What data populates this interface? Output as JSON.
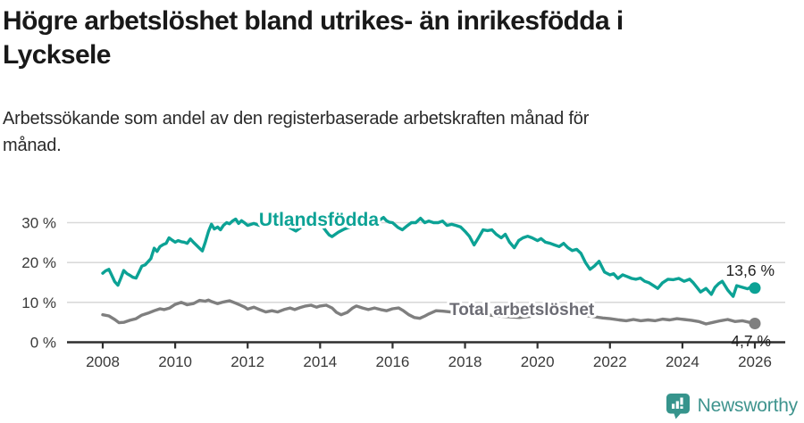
{
  "title_lines": [
    "Högre arbetslöshet bland utrikes- än inrikesfödda i",
    "Lycksele"
  ],
  "subtitle_lines": [
    "Arbetssökande som andel av den registerbaserade arbetskraften månad för",
    "månad."
  ],
  "branding": {
    "logo_text": "Newsworthy",
    "logo_color": "#36948c",
    "text_color": "#3f948e"
  },
  "chart_data": {
    "type": "line",
    "title": "Högre arbetslöshet bland utrikes- än inrikesfödda i Lycksele",
    "subtitle": "Arbetssökande som andel av den registerbaserade arbetskraften månad för månad.",
    "xlabel": "",
    "ylabel": "",
    "unit": "%",
    "grid": "horizontal",
    "legend": "inline-labels",
    "xlim": [
      2007.0,
      2026.9
    ],
    "ylim": [
      0,
      33
    ],
    "x_ticks": [
      "2008",
      "2010",
      "2012",
      "2014",
      "2016",
      "2018",
      "2020",
      "2022",
      "2024",
      "2026"
    ],
    "y_ticks": [
      {
        "v": 0,
        "label": "0 %"
      },
      {
        "v": 10,
        "label": "10 %"
      },
      {
        "v": 20,
        "label": "20 %"
      },
      {
        "v": 30,
        "label": "30 %"
      }
    ],
    "colors": {
      "grid": "#d9d9d9",
      "axis": "#2e2e2e",
      "tick_text": "#3a3a3a",
      "value_label": "#1f1f1f"
    },
    "series": [
      {
        "name": "Utlandsfödda",
        "color": "#0ca295",
        "label_color": "#0ca295",
        "end_label": "13,6 %",
        "points": [
          [
            2008.0,
            17.3
          ],
          [
            2008.08,
            17.9
          ],
          [
            2008.17,
            18.3
          ],
          [
            2008.25,
            16.8
          ],
          [
            2008.33,
            15.2
          ],
          [
            2008.42,
            14.3
          ],
          [
            2008.5,
            16.1
          ],
          [
            2008.58,
            18.0
          ],
          [
            2008.67,
            17.2
          ],
          [
            2008.75,
            16.8
          ],
          [
            2008.83,
            16.3
          ],
          [
            2008.92,
            16.1
          ],
          [
            2009.0,
            17.6
          ],
          [
            2009.08,
            19.1
          ],
          [
            2009.17,
            19.4
          ],
          [
            2009.25,
            20.2
          ],
          [
            2009.33,
            21.0
          ],
          [
            2009.42,
            23.6
          ],
          [
            2009.5,
            22.8
          ],
          [
            2009.58,
            24.0
          ],
          [
            2009.67,
            24.5
          ],
          [
            2009.75,
            24.8
          ],
          [
            2009.83,
            26.2
          ],
          [
            2009.92,
            25.6
          ],
          [
            2010.0,
            25.1
          ],
          [
            2010.08,
            25.5
          ],
          [
            2010.17,
            25.2
          ],
          [
            2010.25,
            25.1
          ],
          [
            2010.33,
            24.8
          ],
          [
            2010.42,
            25.9
          ],
          [
            2010.5,
            25.1
          ],
          [
            2010.58,
            24.4
          ],
          [
            2010.67,
            23.6
          ],
          [
            2010.75,
            22.9
          ],
          [
            2010.83,
            25.1
          ],
          [
            2010.92,
            27.8
          ],
          [
            2011.0,
            29.6
          ],
          [
            2011.08,
            28.4
          ],
          [
            2011.17,
            28.9
          ],
          [
            2011.25,
            28.2
          ],
          [
            2011.33,
            29.3
          ],
          [
            2011.42,
            30.0
          ],
          [
            2011.5,
            29.7
          ],
          [
            2011.58,
            30.4
          ],
          [
            2011.67,
            30.9
          ],
          [
            2011.75,
            29.8
          ],
          [
            2011.83,
            30.5
          ],
          [
            2011.92,
            29.9
          ],
          [
            2012.0,
            29.3
          ],
          [
            2012.17,
            29.8
          ],
          [
            2012.33,
            29.3
          ],
          [
            2012.5,
            29.9
          ],
          [
            2012.67,
            29.5
          ],
          [
            2012.83,
            30.1
          ],
          [
            2013.0,
            29.5
          ],
          [
            2013.17,
            28.7
          ],
          [
            2013.33,
            27.9
          ],
          [
            2013.5,
            29.0
          ],
          [
            2013.67,
            29.7
          ],
          [
            2013.83,
            29.3
          ],
          [
            2014.0,
            29.8
          ],
          [
            2014.08,
            28.9
          ],
          [
            2014.17,
            27.8
          ],
          [
            2014.25,
            26.9
          ],
          [
            2014.33,
            26.5
          ],
          [
            2014.5,
            27.6
          ],
          [
            2014.67,
            28.4
          ],
          [
            2014.83,
            28.9
          ],
          [
            2015.0,
            29.3
          ],
          [
            2015.17,
            29.0
          ],
          [
            2015.33,
            29.7
          ],
          [
            2015.5,
            30.2
          ],
          [
            2015.67,
            30.8
          ],
          [
            2015.75,
            31.3
          ],
          [
            2015.83,
            30.5
          ],
          [
            2015.92,
            30.1
          ],
          [
            2016.0,
            30.0
          ],
          [
            2016.15,
            28.8
          ],
          [
            2016.27,
            28.2
          ],
          [
            2016.4,
            29.2
          ],
          [
            2016.52,
            30.0
          ],
          [
            2016.64,
            30.0
          ],
          [
            2016.77,
            31.1
          ],
          [
            2016.89,
            30.0
          ],
          [
            2017.0,
            30.4
          ],
          [
            2017.13,
            30.0
          ],
          [
            2017.26,
            30.0
          ],
          [
            2017.38,
            30.4
          ],
          [
            2017.5,
            29.3
          ],
          [
            2017.63,
            29.6
          ],
          [
            2017.75,
            29.3
          ],
          [
            2017.88,
            28.9
          ],
          [
            2018.0,
            27.8
          ],
          [
            2018.12,
            26.6
          ],
          [
            2018.25,
            24.4
          ],
          [
            2018.37,
            26.2
          ],
          [
            2018.5,
            28.2
          ],
          [
            2018.62,
            28.0
          ],
          [
            2018.74,
            28.2
          ],
          [
            2018.86,
            27.1
          ],
          [
            2019.0,
            26.2
          ],
          [
            2019.11,
            27.1
          ],
          [
            2019.23,
            25.1
          ],
          [
            2019.36,
            23.7
          ],
          [
            2019.48,
            25.5
          ],
          [
            2019.6,
            26.2
          ],
          [
            2019.73,
            26.6
          ],
          [
            2019.85,
            26.2
          ],
          [
            2020.0,
            25.5
          ],
          [
            2020.1,
            26.0
          ],
          [
            2020.22,
            25.1
          ],
          [
            2020.35,
            24.8
          ],
          [
            2020.47,
            24.4
          ],
          [
            2020.6,
            24.0
          ],
          [
            2020.72,
            24.8
          ],
          [
            2020.84,
            23.7
          ],
          [
            2020.96,
            23.0
          ],
          [
            2021.08,
            23.3
          ],
          [
            2021.2,
            22.3
          ],
          [
            2021.33,
            19.9
          ],
          [
            2021.45,
            18.3
          ],
          [
            2021.57,
            19.1
          ],
          [
            2021.7,
            20.3
          ],
          [
            2021.85,
            17.6
          ],
          [
            2022.0,
            16.9
          ],
          [
            2022.1,
            17.2
          ],
          [
            2022.22,
            16.0
          ],
          [
            2022.35,
            16.9
          ],
          [
            2022.47,
            16.5
          ],
          [
            2022.6,
            16.0
          ],
          [
            2022.72,
            15.8
          ],
          [
            2022.84,
            16.1
          ],
          [
            2022.96,
            15.3
          ],
          [
            2023.08,
            14.9
          ],
          [
            2023.2,
            14.2
          ],
          [
            2023.32,
            13.5
          ],
          [
            2023.45,
            14.9
          ],
          [
            2023.6,
            15.8
          ],
          [
            2023.75,
            15.7
          ],
          [
            2023.9,
            16.0
          ],
          [
            2024.05,
            15.3
          ],
          [
            2024.2,
            15.8
          ],
          [
            2024.3,
            14.9
          ],
          [
            2024.4,
            13.8
          ],
          [
            2024.5,
            12.6
          ],
          [
            2024.65,
            13.5
          ],
          [
            2024.8,
            12.0
          ],
          [
            2024.9,
            13.8
          ],
          [
            2025.0,
            14.7
          ],
          [
            2025.1,
            15.3
          ],
          [
            2025.25,
            13.1
          ],
          [
            2025.4,
            11.5
          ],
          [
            2025.5,
            14.2
          ],
          [
            2025.65,
            13.8
          ],
          [
            2025.8,
            13.4
          ],
          [
            2025.9,
            13.9
          ],
          [
            2026.0,
            13.6
          ]
        ]
      },
      {
        "name": "Total arbetslöshet",
        "color": "#7f7f7f",
        "label_color": "#6c6c74",
        "end_label": "4,7 %",
        "points": [
          [
            2008.0,
            6.9
          ],
          [
            2008.17,
            6.6
          ],
          [
            2008.33,
            5.7
          ],
          [
            2008.45,
            4.9
          ],
          [
            2008.58,
            5.0
          ],
          [
            2008.75,
            5.5
          ],
          [
            2008.92,
            5.9
          ],
          [
            2009.08,
            6.8
          ],
          [
            2009.25,
            7.3
          ],
          [
            2009.42,
            7.9
          ],
          [
            2009.58,
            8.4
          ],
          [
            2009.7,
            8.2
          ],
          [
            2009.85,
            8.6
          ],
          [
            2010.0,
            9.5
          ],
          [
            2010.17,
            10.0
          ],
          [
            2010.33,
            9.4
          ],
          [
            2010.5,
            9.7
          ],
          [
            2010.67,
            10.5
          ],
          [
            2010.83,
            10.3
          ],
          [
            2010.92,
            10.6
          ],
          [
            2011.0,
            10.2
          ],
          [
            2011.17,
            9.7
          ],
          [
            2011.33,
            10.1
          ],
          [
            2011.5,
            10.4
          ],
          [
            2011.67,
            9.8
          ],
          [
            2011.8,
            9.3
          ],
          [
            2011.92,
            8.8
          ],
          [
            2012.0,
            8.3
          ],
          [
            2012.17,
            8.8
          ],
          [
            2012.33,
            8.2
          ],
          [
            2012.5,
            7.6
          ],
          [
            2012.67,
            7.9
          ],
          [
            2012.83,
            7.6
          ],
          [
            2013.0,
            8.2
          ],
          [
            2013.17,
            8.6
          ],
          [
            2013.3,
            8.2
          ],
          [
            2013.45,
            8.7
          ],
          [
            2013.6,
            9.1
          ],
          [
            2013.75,
            9.3
          ],
          [
            2013.9,
            8.8
          ],
          [
            2014.0,
            9.1
          ],
          [
            2014.17,
            9.3
          ],
          [
            2014.33,
            8.6
          ],
          [
            2014.45,
            7.5
          ],
          [
            2014.58,
            6.9
          ],
          [
            2014.75,
            7.5
          ],
          [
            2014.9,
            8.6
          ],
          [
            2015.0,
            9.1
          ],
          [
            2015.17,
            8.6
          ],
          [
            2015.33,
            8.2
          ],
          [
            2015.5,
            8.6
          ],
          [
            2015.67,
            8.2
          ],
          [
            2015.83,
            7.9
          ],
          [
            2016.0,
            8.4
          ],
          [
            2016.17,
            8.6
          ],
          [
            2016.3,
            7.9
          ],
          [
            2016.45,
            6.9
          ],
          [
            2016.6,
            6.2
          ],
          [
            2016.75,
            6.0
          ],
          [
            2016.9,
            6.6
          ],
          [
            2017.0,
            7.1
          ],
          [
            2017.2,
            7.9
          ],
          [
            2017.4,
            7.8
          ],
          [
            2017.6,
            7.6
          ],
          [
            2017.8,
            7.3
          ],
          [
            2018.0,
            7.0
          ],
          [
            2018.3,
            6.7
          ],
          [
            2018.6,
            6.9
          ],
          [
            2018.9,
            6.6
          ],
          [
            2019.2,
            6.4
          ],
          [
            2019.5,
            6.2
          ],
          [
            2019.8,
            6.5
          ],
          [
            2020.1,
            7.3
          ],
          [
            2020.4,
            7.9
          ],
          [
            2020.7,
            7.7
          ],
          [
            2020.9,
            7.4
          ],
          [
            2021.2,
            6.9
          ],
          [
            2021.5,
            6.5
          ],
          [
            2021.8,
            6.1
          ],
          [
            2022.0,
            5.9
          ],
          [
            2022.25,
            5.6
          ],
          [
            2022.45,
            5.4
          ],
          [
            2022.65,
            5.7
          ],
          [
            2022.85,
            5.4
          ],
          [
            2023.05,
            5.6
          ],
          [
            2023.25,
            5.4
          ],
          [
            2023.45,
            5.8
          ],
          [
            2023.65,
            5.6
          ],
          [
            2023.85,
            5.9
          ],
          [
            2024.05,
            5.7
          ],
          [
            2024.25,
            5.5
          ],
          [
            2024.45,
            5.2
          ],
          [
            2024.65,
            4.6
          ],
          [
            2024.85,
            5.0
          ],
          [
            2025.05,
            5.4
          ],
          [
            2025.25,
            5.7
          ],
          [
            2025.45,
            5.2
          ],
          [
            2025.65,
            5.4
          ],
          [
            2025.85,
            5.0
          ],
          [
            2026.0,
            4.7
          ]
        ]
      }
    ]
  }
}
